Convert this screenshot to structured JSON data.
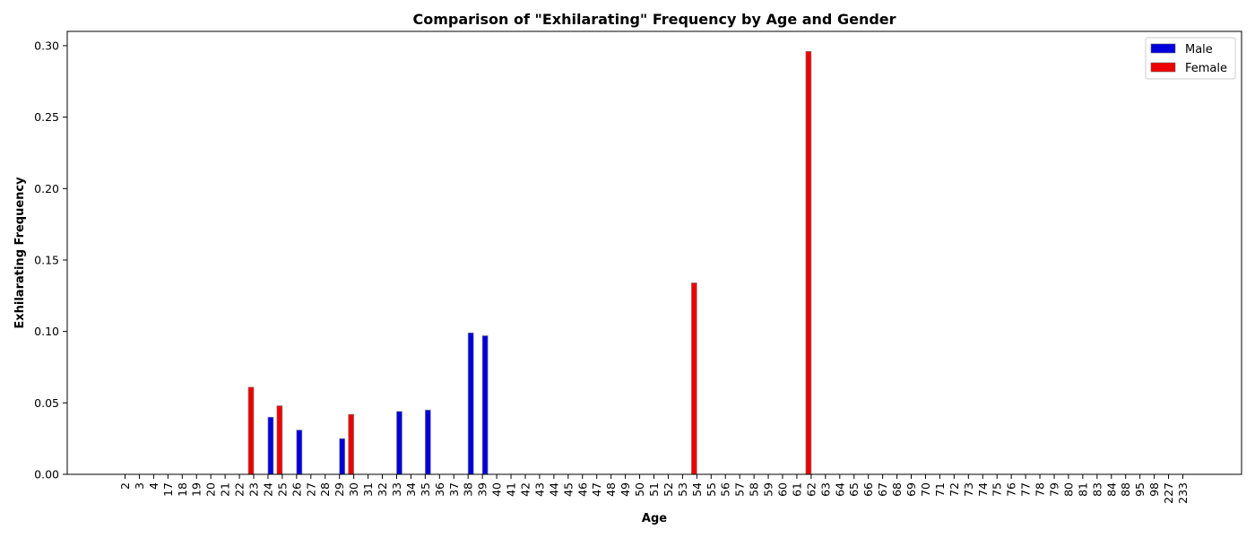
{
  "chart_data": {
    "type": "bar",
    "title": "Comparison of \"Exhilarating\" Frequency by Age and Gender",
    "xlabel": "Age",
    "ylabel": "Exhilarating Frequency",
    "ylim": [
      0,
      0.31
    ],
    "yticks": [
      "0.00",
      "0.05",
      "0.10",
      "0.15",
      "0.20",
      "0.25",
      "0.30"
    ],
    "categories": [
      "2",
      "3",
      "4",
      "17",
      "18",
      "19",
      "20",
      "21",
      "22",
      "23",
      "24",
      "25",
      "26",
      "27",
      "28",
      "29",
      "30",
      "31",
      "32",
      "33",
      "34",
      "35",
      "36",
      "37",
      "38",
      "39",
      "40",
      "41",
      "42",
      "43",
      "44",
      "45",
      "46",
      "47",
      "48",
      "49",
      "50",
      "51",
      "52",
      "53",
      "54",
      "55",
      "56",
      "57",
      "58",
      "59",
      "60",
      "61",
      "62",
      "63",
      "64",
      "65",
      "66",
      "67",
      "68",
      "69",
      "70",
      "71",
      "72",
      "73",
      "74",
      "75",
      "76",
      "77",
      "78",
      "79",
      "80",
      "81",
      "83",
      "84",
      "88",
      "95",
      "98",
      "227",
      "233"
    ],
    "series": [
      {
        "name": "Male",
        "color": "#0000dd",
        "values": [
          0,
          0,
          0,
          0,
          0,
          0,
          0,
          0,
          0,
          0,
          0.04,
          0,
          0.031,
          0,
          0,
          0.025,
          0,
          0,
          0,
          0.044,
          0,
          0.045,
          0,
          0,
          0.099,
          0.097,
          0,
          0,
          0,
          0,
          0,
          0,
          0,
          0,
          0,
          0,
          0,
          0,
          0,
          0,
          0,
          0,
          0,
          0,
          0,
          0,
          0,
          0,
          0,
          0,
          0,
          0,
          0,
          0,
          0,
          0,
          0,
          0,
          0,
          0,
          0,
          0,
          0,
          0,
          0,
          0,
          0,
          0,
          0,
          0,
          0,
          0,
          0,
          0,
          0
        ]
      },
      {
        "name": "Female",
        "color": "#ee0000",
        "values": [
          0,
          0,
          0,
          0,
          0,
          0,
          0,
          0,
          0,
          0.061,
          0,
          0.048,
          0,
          0,
          0,
          0,
          0.042,
          0,
          0,
          0,
          0,
          0,
          0,
          0,
          0,
          0,
          0,
          0,
          0,
          0,
          0,
          0,
          0,
          0,
          0,
          0,
          0,
          0,
          0,
          0,
          0.134,
          0,
          0,
          0,
          0,
          0,
          0,
          0,
          0.296,
          0,
          0,
          0,
          0,
          0,
          0,
          0,
          0,
          0,
          0,
          0,
          0,
          0,
          0,
          0,
          0,
          0,
          0,
          0,
          0,
          0,
          0,
          0,
          0,
          0,
          0
        ]
      }
    ],
    "legend_position": "top-right",
    "grid": false
  }
}
